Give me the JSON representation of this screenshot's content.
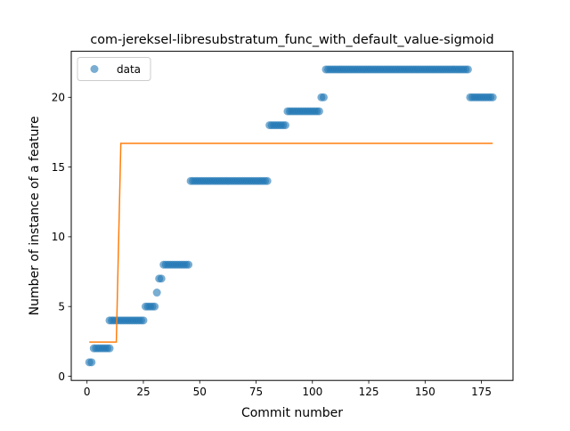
{
  "chart_data": {
    "type": "scatter",
    "title": "com-jereksel-libresubstratum_func_with_default_value-sigmoid",
    "xlabel": "Commit number",
    "ylabel": "Number of instance of a feature",
    "xlim": [
      -7,
      189
    ],
    "ylim": [
      -0.3,
      23.3
    ],
    "xticks": [
      0,
      25,
      50,
      75,
      100,
      125,
      150,
      175
    ],
    "yticks": [
      0,
      5,
      10,
      15,
      20
    ],
    "grid": false,
    "legend": {
      "position": "top-left",
      "entries": [
        "data"
      ]
    },
    "colors": {
      "data": "#1f77b4",
      "fit": "#ff7f0e"
    },
    "series": [
      {
        "name": "data",
        "style": "markers",
        "segments": [
          {
            "x_start": 1,
            "x_end": 2,
            "y": 1
          },
          {
            "x_start": 3,
            "x_end": 10,
            "y": 2
          },
          {
            "x_start": 10,
            "x_end": 25,
            "y": 4
          },
          {
            "x_start": 26,
            "x_end": 30,
            "y": 5
          },
          {
            "x_start": 31,
            "x_end": 31,
            "y": 6
          },
          {
            "x_start": 32,
            "x_end": 33,
            "y": 7
          },
          {
            "x_start": 34,
            "x_end": 45,
            "y": 8
          },
          {
            "x_start": 46,
            "x_end": 80,
            "y": 14
          },
          {
            "x_start": 81,
            "x_end": 88,
            "y": 18
          },
          {
            "x_start": 89,
            "x_end": 103,
            "y": 19
          },
          {
            "x_start": 104,
            "x_end": 105,
            "y": 20
          },
          {
            "x_start": 106,
            "x_end": 169,
            "y": 22
          },
          {
            "x_start": 170,
            "x_end": 180,
            "y": 20
          }
        ]
      },
      {
        "style": "line",
        "x": [
          1,
          13,
          15,
          180
        ],
        "y": [
          2.45,
          2.45,
          16.7,
          16.7
        ]
      }
    ]
  }
}
